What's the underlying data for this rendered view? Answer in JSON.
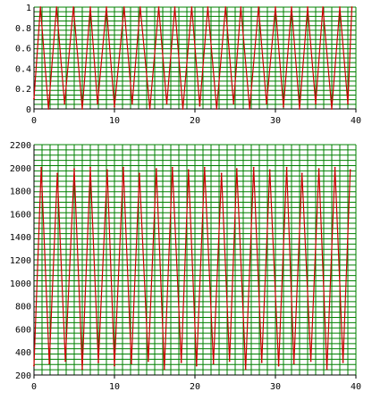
{
  "chart_data": [
    {
      "type": "line",
      "title": "",
      "xlabel": "",
      "ylabel": "",
      "xlim": [
        0,
        40
      ],
      "ylim": [
        0,
        1
      ],
      "xticks": [
        "0",
        "10",
        "20",
        "30",
        "40"
      ],
      "yticks": [
        "0",
        "0.2",
        "0.4",
        "0.6",
        "0.8",
        "1"
      ],
      "grid": {
        "horizontal_lines": 22,
        "color": "#008000"
      },
      "line_color": "#cc0000",
      "series": [
        {
          "x": [
            0.0,
            0.8,
            1.8,
            2.8,
            3.8,
            4.9,
            6.0,
            7.0,
            7.9,
            9.0,
            10.0,
            11.2,
            12.2,
            13.2,
            14.4,
            15.5,
            16.5,
            17.5,
            18.5,
            19.6,
            20.6,
            21.6,
            22.7,
            23.8,
            24.8,
            25.7,
            26.8,
            27.9,
            28.9,
            30.0,
            31.0,
            32.0,
            33.0,
            34.0,
            35.0,
            35.9,
            37.0,
            38.0,
            39.0,
            39.5
          ],
          "y": [
            0.1,
            1.0,
            0.0,
            1.0,
            0.05,
            1.0,
            0.0,
            1.0,
            0.05,
            1.0,
            0.02,
            1.0,
            0.05,
            1.0,
            0.0,
            1.0,
            0.05,
            1.0,
            0.0,
            1.0,
            0.03,
            1.0,
            0.0,
            1.0,
            0.05,
            1.0,
            0.0,
            1.0,
            0.05,
            1.0,
            0.02,
            1.0,
            0.0,
            1.0,
            0.05,
            1.0,
            0.0,
            1.0,
            0.05,
            1.0
          ]
        }
      ]
    },
    {
      "type": "line",
      "title": "",
      "xlabel": "",
      "ylabel": "",
      "xlim": [
        0,
        40
      ],
      "ylim": [
        200,
        2200
      ],
      "xticks": [
        "0",
        "10",
        "20",
        "30",
        "40"
      ],
      "yticks": [
        "200",
        "400",
        "600",
        "800",
        "1000",
        "1200",
        "1400",
        "1600",
        "1800",
        "2000",
        "2200"
      ],
      "grid": {
        "horizontal_lines": 44,
        "color": "#008000"
      },
      "line_color": "#cc0000",
      "series": [
        {
          "x": [
            0.0,
            0.9,
            1.9,
            2.9,
            3.9,
            5.0,
            6.0,
            7.0,
            8.0,
            9.1,
            10.0,
            11.1,
            12.1,
            13.1,
            14.2,
            15.2,
            16.2,
            17.2,
            18.3,
            19.2,
            20.2,
            21.2,
            22.3,
            23.3,
            24.3,
            25.2,
            26.3,
            27.3,
            28.3,
            29.3,
            30.4,
            31.4,
            32.3,
            33.3,
            34.4,
            35.4,
            36.4,
            37.4,
            38.4,
            39.3
          ],
          "y": [
            280,
            2000,
            300,
            1950,
            320,
            1990,
            250,
            2000,
            310,
            1980,
            280,
            2000,
            300,
            1950,
            320,
            1990,
            250,
            2000,
            310,
            1980,
            280,
            2000,
            300,
            1950,
            320,
            1990,
            250,
            2000,
            310,
            1980,
            280,
            2000,
            300,
            1950,
            320,
            1990,
            250,
            2000,
            310,
            1980
          ]
        }
      ]
    }
  ]
}
